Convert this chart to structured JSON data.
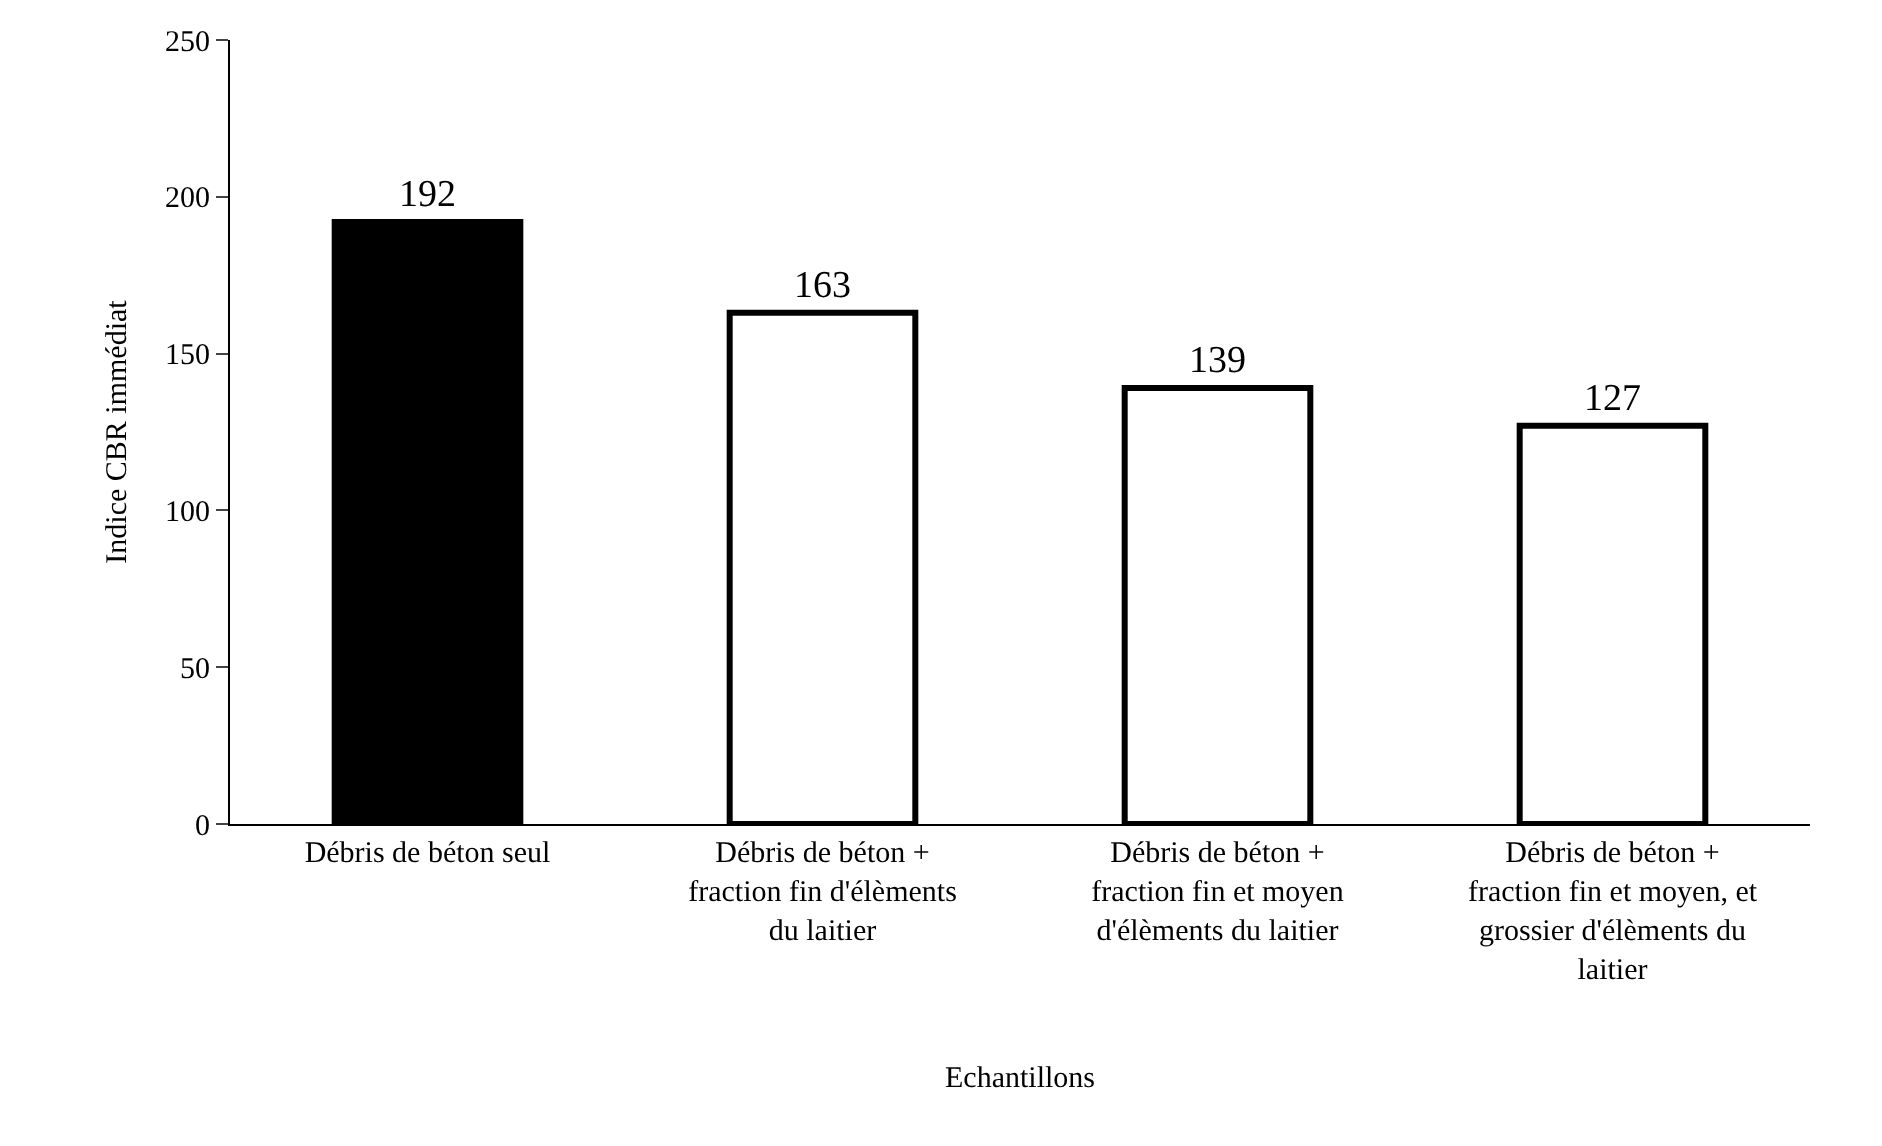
{
  "chart_data": {
    "type": "bar",
    "categories": [
      "Débris de béton seul",
      "Débris de béton + fraction fin d'élèments du laitier",
      "Débris de béton + fraction fin et moyen d'élèments du laitier",
      "Débris de béton + fraction fin et moyen, et grossier d'élèments du laitier"
    ],
    "values": [
      192,
      163,
      139,
      127
    ],
    "colors": [
      "#000000",
      "#ffffff",
      "#ffffff",
      "#ffffff"
    ],
    "xlabel": "Echantillons",
    "ylabel": "Indice CBR immédiat",
    "ylim": [
      0,
      250
    ],
    "yticks": [
      0,
      50,
      100,
      150,
      200,
      250
    ],
    "data_labels": true
  }
}
